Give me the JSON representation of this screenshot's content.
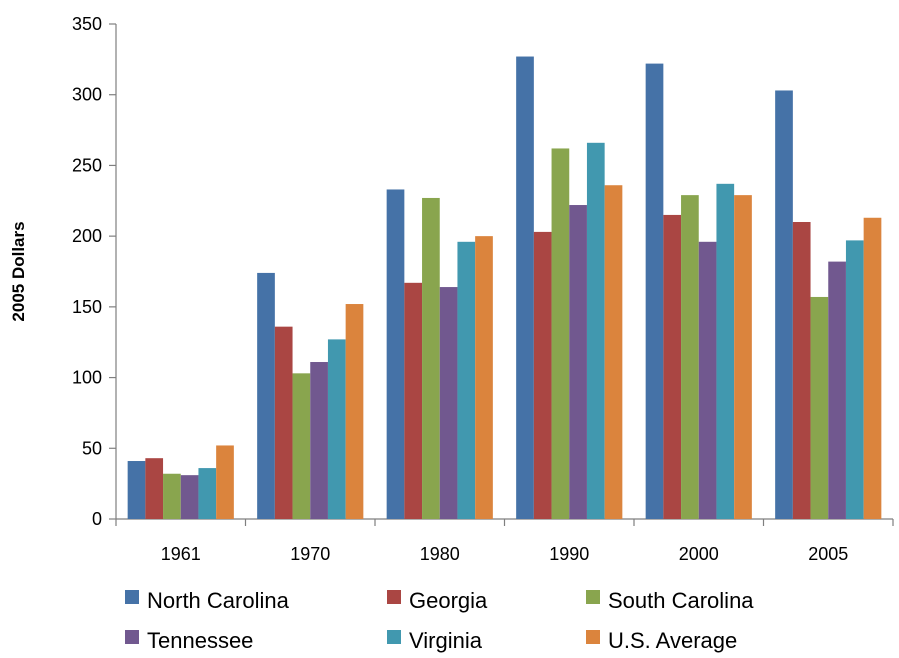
{
  "chart_data": {
    "type": "bar",
    "title": "",
    "xlabel": "",
    "ylabel": "2005 Dollars",
    "ylim": [
      0,
      350
    ],
    "yticks": [
      0,
      50,
      100,
      150,
      200,
      250,
      300,
      350
    ],
    "grid": false,
    "legend_position": "bottom",
    "categories": [
      "1961",
      "1970",
      "1980",
      "1990",
      "2000",
      "2005"
    ],
    "series": [
      {
        "name": "North Carolina",
        "color": "#4572A7",
        "values": [
          41,
          174,
          233,
          327,
          322,
          303
        ]
      },
      {
        "name": "Georgia",
        "color": "#AA4643",
        "values": [
          43,
          136,
          167,
          203,
          215,
          210
        ]
      },
      {
        "name": "South Carolina",
        "color": "#89A54E",
        "values": [
          32,
          103,
          227,
          262,
          229,
          157
        ]
      },
      {
        "name": "Tennessee",
        "color": "#71588F",
        "values": [
          31,
          111,
          164,
          222,
          196,
          182
        ]
      },
      {
        "name": "Virginia",
        "color": "#4198AF",
        "values": [
          36,
          127,
          196,
          266,
          237,
          197
        ]
      },
      {
        "name": "U.S. Average",
        "color": "#DB843D",
        "values": [
          52,
          152,
          200,
          236,
          229,
          213
        ]
      }
    ]
  }
}
